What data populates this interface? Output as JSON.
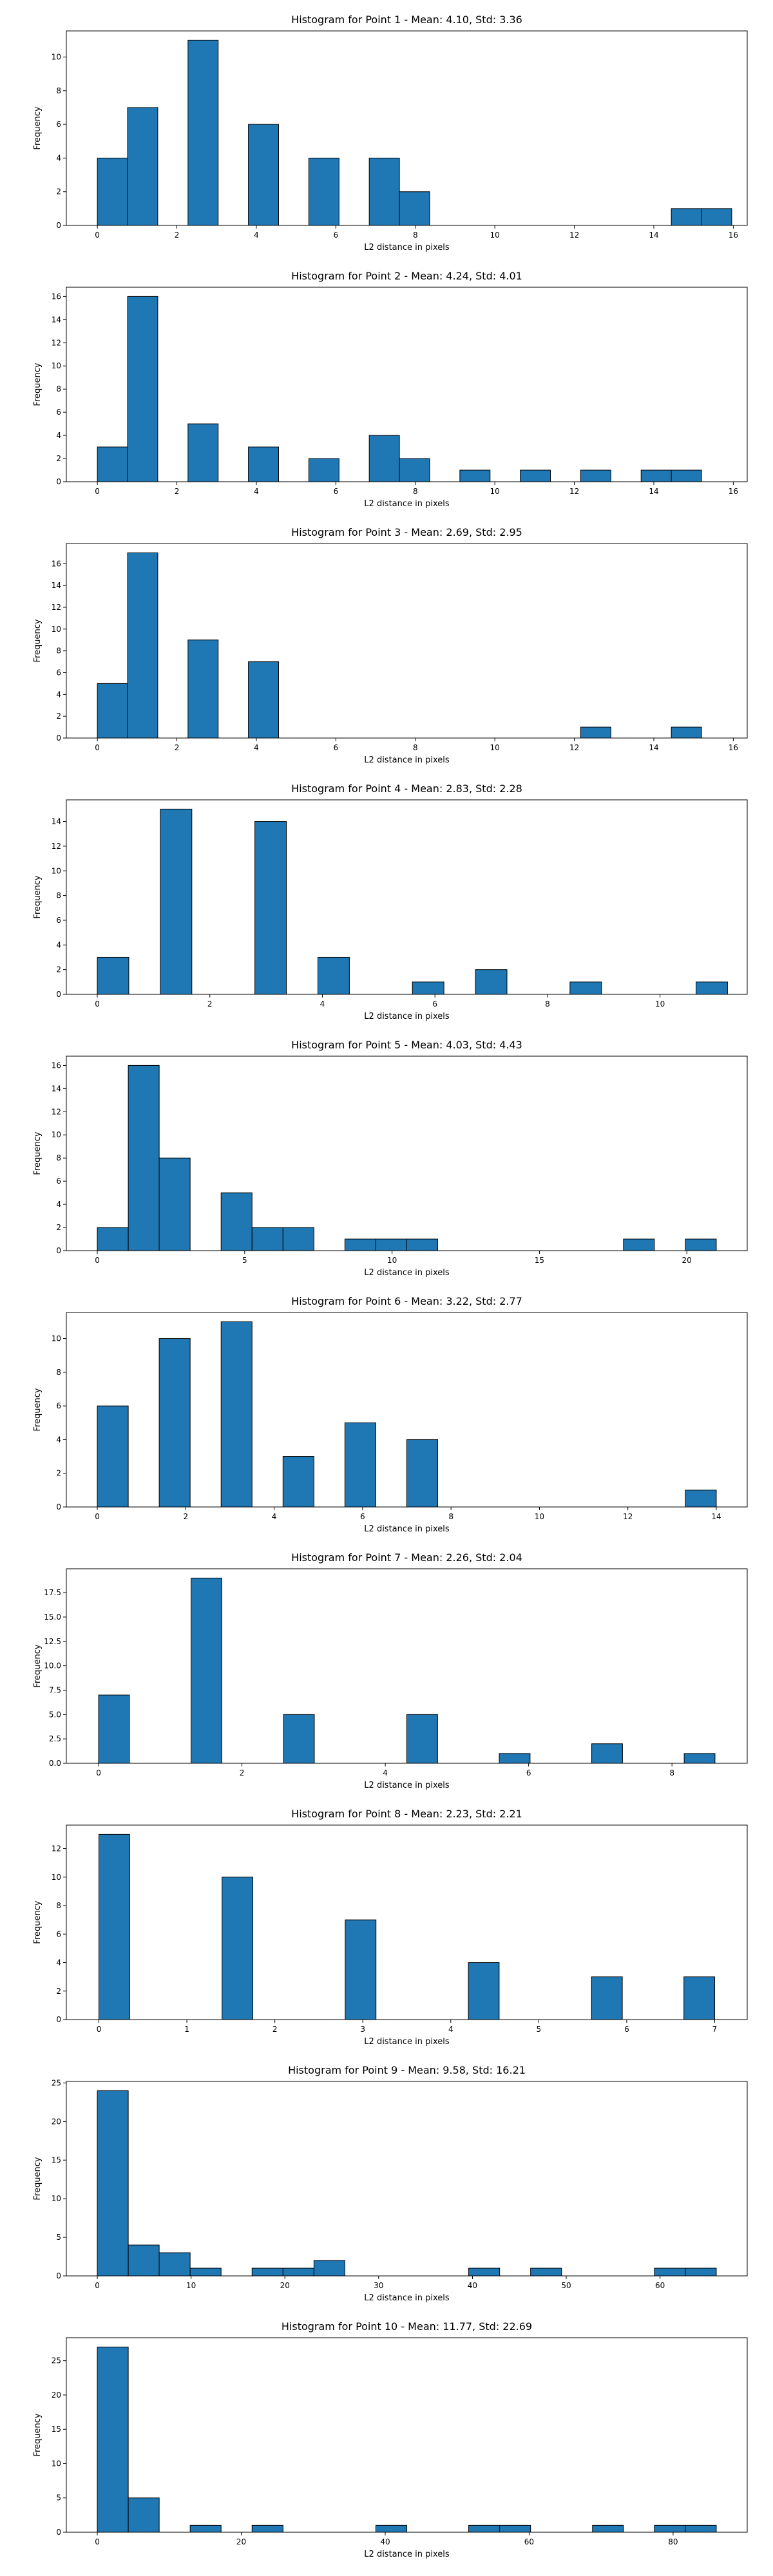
{
  "chart_data": [
    {
      "type": "bar",
      "title": "Histogram for Point 1 - Mean: 4.10, Std: 3.36",
      "xlabel": "L2 distance in pixels",
      "ylabel": "Frequency",
      "xlim": [
        -0.78,
        16.35
      ],
      "ylim": [
        0,
        11.55
      ],
      "xticks": [
        0,
        2,
        4,
        6,
        8,
        10,
        12,
        14,
        16
      ],
      "yticks": [
        0,
        2,
        4,
        6,
        8,
        10
      ],
      "bin_width": 0.76,
      "bins": [
        {
          "x": 0.0,
          "count": 4
        },
        {
          "x": 0.76,
          "count": 7
        },
        {
          "x": 2.28,
          "count": 11
        },
        {
          "x": 3.8,
          "count": 6
        },
        {
          "x": 5.32,
          "count": 4
        },
        {
          "x": 6.84,
          "count": 4
        },
        {
          "x": 7.6,
          "count": 2
        },
        {
          "x": 14.44,
          "count": 1
        },
        {
          "x": 15.2,
          "count": 1
        }
      ]
    },
    {
      "type": "bar",
      "title": "Histogram for Point 2 - Mean: 4.24, Std: 4.01",
      "xlabel": "L2 distance in pixels",
      "ylabel": "Frequency",
      "xlim": [
        -0.78,
        16.35
      ],
      "ylim": [
        0,
        16.8
      ],
      "xticks": [
        0,
        2,
        4,
        6,
        8,
        10,
        12,
        14,
        16
      ],
      "yticks": [
        0,
        2,
        4,
        6,
        8,
        10,
        12,
        14,
        16
      ],
      "bin_width": 0.76,
      "bins": [
        {
          "x": 0.0,
          "count": 3
        },
        {
          "x": 0.76,
          "count": 16
        },
        {
          "x": 2.28,
          "count": 5
        },
        {
          "x": 3.8,
          "count": 3
        },
        {
          "x": 5.32,
          "count": 2
        },
        {
          "x": 6.84,
          "count": 4
        },
        {
          "x": 7.6,
          "count": 2
        },
        {
          "x": 9.12,
          "count": 1
        },
        {
          "x": 10.64,
          "count": 1
        },
        {
          "x": 12.16,
          "count": 1
        },
        {
          "x": 13.68,
          "count": 1
        },
        {
          "x": 14.44,
          "count": 1
        }
      ]
    },
    {
      "type": "bar",
      "title": "Histogram for Point 3 - Mean: 2.69, Std: 2.95",
      "xlabel": "L2 distance in pixels",
      "ylabel": "Frequency",
      "xlim": [
        -0.78,
        16.35
      ],
      "ylim": [
        0,
        17.85
      ],
      "xticks": [
        0,
        2,
        4,
        6,
        8,
        10,
        12,
        14,
        16
      ],
      "yticks": [
        0,
        2,
        4,
        6,
        8,
        10,
        12,
        14,
        16
      ],
      "bin_width": 0.76,
      "bins": [
        {
          "x": 0.0,
          "count": 5
        },
        {
          "x": 0.76,
          "count": 17
        },
        {
          "x": 2.28,
          "count": 9
        },
        {
          "x": 3.8,
          "count": 7
        },
        {
          "x": 12.16,
          "count": 1
        },
        {
          "x": 14.44,
          "count": 1
        }
      ]
    },
    {
      "type": "bar",
      "title": "Histogram for Point 4 - Mean: 2.83, Std: 2.28",
      "xlabel": "L2 distance in pixels",
      "ylabel": "Frequency",
      "xlim": [
        -0.55,
        11.55
      ],
      "ylim": [
        0,
        15.75
      ],
      "xticks": [
        0,
        2,
        4,
        6,
        8,
        10
      ],
      "yticks": [
        0,
        2,
        4,
        6,
        8,
        10,
        12,
        14
      ],
      "bin_width": 0.56,
      "bins": [
        {
          "x": 0.0,
          "count": 3
        },
        {
          "x": 1.12,
          "count": 15
        },
        {
          "x": 2.8,
          "count": 14
        },
        {
          "x": 3.92,
          "count": 3
        },
        {
          "x": 5.6,
          "count": 1
        },
        {
          "x": 6.72,
          "count": 2
        },
        {
          "x": 8.4,
          "count": 1
        },
        {
          "x": 10.64,
          "count": 1
        }
      ]
    },
    {
      "type": "bar",
      "title": "Histogram for Point 5 - Mean: 4.03, Std: 4.43",
      "xlabel": "L2 distance in pixels",
      "ylabel": "Frequency",
      "xlim": [
        -1.05,
        22.05
      ],
      "ylim": [
        0,
        16.8
      ],
      "xticks": [
        0,
        5,
        10,
        15,
        20
      ],
      "yticks": [
        0,
        2,
        4,
        6,
        8,
        10,
        12,
        14,
        16
      ],
      "bin_width": 1.05,
      "bins": [
        {
          "x": 0.0,
          "count": 2
        },
        {
          "x": 1.05,
          "count": 16
        },
        {
          "x": 2.1,
          "count": 8
        },
        {
          "x": 4.2,
          "count": 5
        },
        {
          "x": 5.25,
          "count": 2
        },
        {
          "x": 6.3,
          "count": 2
        },
        {
          "x": 8.4,
          "count": 1
        },
        {
          "x": 9.45,
          "count": 1
        },
        {
          "x": 10.5,
          "count": 1
        },
        {
          "x": 17.85,
          "count": 1
        },
        {
          "x": 19.95,
          "count": 1
        }
      ]
    },
    {
      "type": "bar",
      "title": "Histogram for Point 6 - Mean: 3.22, Std: 2.77",
      "xlabel": "L2 distance in pixels",
      "ylabel": "Frequency",
      "xlim": [
        -0.7,
        14.7
      ],
      "ylim": [
        0,
        11.55
      ],
      "xticks": [
        0,
        2,
        4,
        6,
        8,
        10,
        12,
        14
      ],
      "yticks": [
        0,
        2,
        4,
        6,
        8,
        10
      ],
      "bin_width": 0.7,
      "bins": [
        {
          "x": 0.0,
          "count": 6
        },
        {
          "x": 1.4,
          "count": 10
        },
        {
          "x": 2.8,
          "count": 11
        },
        {
          "x": 4.2,
          "count": 3
        },
        {
          "x": 5.6,
          "count": 5
        },
        {
          "x": 7.0,
          "count": 4
        },
        {
          "x": 13.3,
          "count": 1
        }
      ]
    },
    {
      "type": "bar",
      "title": "Histogram for Point 7 - Mean: 2.26, Std: 2.04",
      "xlabel": "L2 distance in pixels",
      "ylabel": "Frequency",
      "xlim": [
        -0.45,
        9.05
      ],
      "ylim": [
        0,
        19.95
      ],
      "xticks": [
        0,
        2,
        4,
        6,
        8
      ],
      "yticks": [
        0.0,
        2.5,
        5.0,
        7.5,
        10.0,
        12.5,
        15.0,
        17.5
      ],
      "ytick_labels": [
        "0.0",
        "2.5",
        "5.0",
        "7.5",
        "10.0",
        "12.5",
        "15.0",
        "17.5"
      ],
      "bin_width": 0.43,
      "bins": [
        {
          "x": 0.0,
          "count": 7
        },
        {
          "x": 1.29,
          "count": 19
        },
        {
          "x": 2.58,
          "count": 5
        },
        {
          "x": 4.3,
          "count": 5
        },
        {
          "x": 5.59,
          "count": 1
        },
        {
          "x": 6.88,
          "count": 2
        },
        {
          "x": 8.17,
          "count": 1
        }
      ]
    },
    {
      "type": "bar",
      "title": "Histogram for Point 8 - Mean: 2.23, Std: 2.21",
      "xlabel": "L2 distance in pixels",
      "ylabel": "Frequency",
      "xlim": [
        -0.37,
        7.37
      ],
      "ylim": [
        0,
        13.65
      ],
      "xticks": [
        0,
        1,
        2,
        3,
        4,
        5,
        6,
        7
      ],
      "yticks": [
        0,
        2,
        4,
        6,
        8,
        10,
        12
      ],
      "bin_width": 0.35,
      "bins": [
        {
          "x": 0.0,
          "count": 13
        },
        {
          "x": 1.4,
          "count": 10
        },
        {
          "x": 2.8,
          "count": 7
        },
        {
          "x": 4.2,
          "count": 4
        },
        {
          "x": 5.6,
          "count": 3
        },
        {
          "x": 6.65,
          "count": 3
        }
      ]
    },
    {
      "type": "bar",
      "title": "Histogram for Point 9 - Mean: 9.58, Std: 16.21",
      "xlabel": "L2 distance in pixels",
      "ylabel": "Frequency",
      "xlim": [
        -3.3,
        69.3
      ],
      "ylim": [
        0,
        25.2
      ],
      "xticks": [
        0,
        10,
        20,
        30,
        40,
        50,
        60
      ],
      "yticks": [
        0,
        5,
        10,
        15,
        20,
        25
      ],
      "bin_width": 3.3,
      "bins": [
        {
          "x": 0.0,
          "count": 24
        },
        {
          "x": 3.3,
          "count": 4
        },
        {
          "x": 6.6,
          "count": 3
        },
        {
          "x": 9.9,
          "count": 1
        },
        {
          "x": 16.5,
          "count": 1
        },
        {
          "x": 19.8,
          "count": 1
        },
        {
          "x": 23.1,
          "count": 2
        },
        {
          "x": 39.6,
          "count": 1
        },
        {
          "x": 46.2,
          "count": 1
        },
        {
          "x": 59.4,
          "count": 1
        },
        {
          "x": 62.7,
          "count": 1
        }
      ]
    },
    {
      "type": "bar",
      "title": "Histogram for Point 10 - Mean: 11.77, Std: 22.69",
      "xlabel": "L2 distance in pixels",
      "ylabel": "Frequency",
      "xlim": [
        -4.3,
        90.3
      ],
      "ylim": [
        0,
        28.35
      ],
      "xticks": [
        0,
        20,
        40,
        60,
        80
      ],
      "yticks": [
        0,
        5,
        10,
        15,
        20,
        25
      ],
      "bin_width": 4.3,
      "bins": [
        {
          "x": 0.0,
          "count": 27
        },
        {
          "x": 4.3,
          "count": 5
        },
        {
          "x": 12.9,
          "count": 1
        },
        {
          "x": 21.5,
          "count": 1
        },
        {
          "x": 38.7,
          "count": 1
        },
        {
          "x": 51.6,
          "count": 1
        },
        {
          "x": 55.9,
          "count": 1
        },
        {
          "x": 68.8,
          "count": 1
        },
        {
          "x": 77.4,
          "count": 1
        },
        {
          "x": 81.7,
          "count": 1
        }
      ]
    }
  ]
}
